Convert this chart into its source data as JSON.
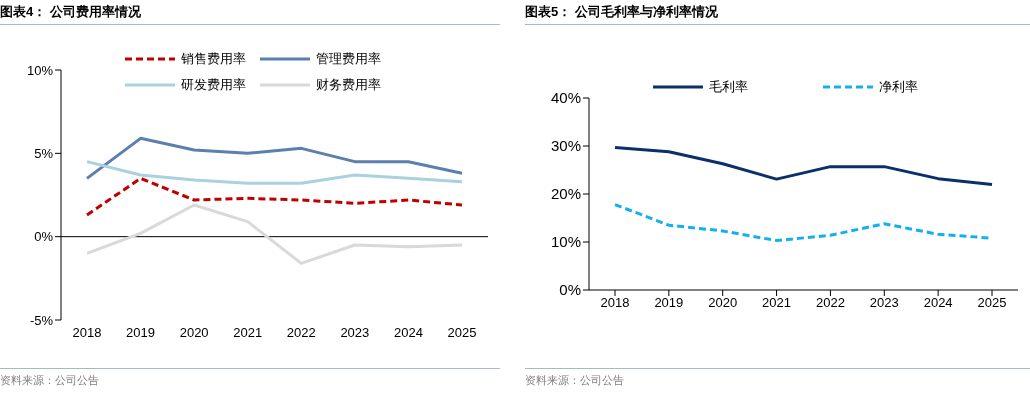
{
  "chart_data": [
    {
      "type": "line",
      "title": "图表4：  公司费用率情况",
      "categories": [
        "2018",
        "2019",
        "2020",
        "2021",
        "2022",
        "2023",
        "2024",
        "2025"
      ],
      "series": [
        {
          "name": "销售费用率",
          "color": "#c00000",
          "line_style": "dashed",
          "values": [
            1.3,
            3.5,
            2.2,
            2.3,
            2.2,
            2.0,
            2.2,
            1.9
          ]
        },
        {
          "name": "管理费用率",
          "color": "#5b7fae",
          "values": [
            3.5,
            5.9,
            5.2,
            5.0,
            5.3,
            4.5,
            4.5,
            3.8
          ]
        },
        {
          "name": "研发费用率",
          "color": "#a9d1e0",
          "values": [
            4.5,
            3.7,
            3.4,
            3.2,
            3.2,
            3.7,
            3.5,
            3.3
          ]
        },
        {
          "name": "财务费用率",
          "color": "#d9d9d9",
          "values": [
            -1.0,
            0.2,
            1.9,
            0.9,
            -1.6,
            -0.5,
            -0.6,
            -0.5
          ]
        }
      ],
      "ylim": [
        -5,
        10
      ],
      "yticks": [
        {
          "value": -5,
          "label": "-5%"
        },
        {
          "value": 0,
          "label": "0%"
        },
        {
          "value": 5,
          "label": "5%"
        },
        {
          "value": 10,
          "label": "10%"
        }
      ],
      "grid": false,
      "legend": "top",
      "marker": "none",
      "ref_lines": [
        {
          "axis": "y",
          "value": 0,
          "color": "#000000"
        }
      ],
      "annotations": [
        "资料来源：公司公告"
      ]
    },
    {
      "type": "line",
      "title": "图表5：  公司毛利率与净利率情况",
      "categories": [
        "2018",
        "2019",
        "2020",
        "2021",
        "2022",
        "2023",
        "2024",
        "2025"
      ],
      "series": [
        {
          "name": "毛利率",
          "color": "#0b2f6b",
          "values": [
            29.7,
            28.8,
            26.3,
            23.1,
            25.7,
            25.7,
            23.2,
            22.0
          ]
        },
        {
          "name": "净利率",
          "color": "#14b0ee",
          "line_style": "dashed",
          "values": [
            17.8,
            13.5,
            12.3,
            10.3,
            11.4,
            13.8,
            11.6,
            10.8
          ]
        }
      ],
      "ylim": [
        0,
        40
      ],
      "yticks": [
        {
          "value": 0,
          "label": "0%"
        },
        {
          "value": 10,
          "label": "10%"
        },
        {
          "value": 20,
          "label": "20%"
        },
        {
          "value": 30,
          "label": "30%"
        },
        {
          "value": 40,
          "label": "40%"
        }
      ],
      "grid": false,
      "legend": "top",
      "marker": "none",
      "annotations": [
        "资料来源：公司公告"
      ]
    }
  ]
}
